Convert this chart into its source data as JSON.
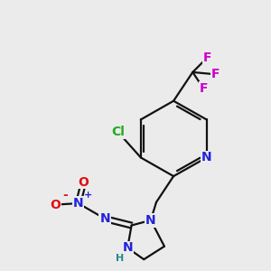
{
  "background_color": "#ebebeb",
  "bond_color": "#111111",
  "bond_width": 1.6,
  "figsize": [
    3.0,
    3.0
  ],
  "dpi": 100,
  "colors": {
    "C": "#111111",
    "N": "#2222dd",
    "O": "#dd1111",
    "Cl": "#22aa22",
    "F": "#cc00cc",
    "H": "#228888"
  }
}
